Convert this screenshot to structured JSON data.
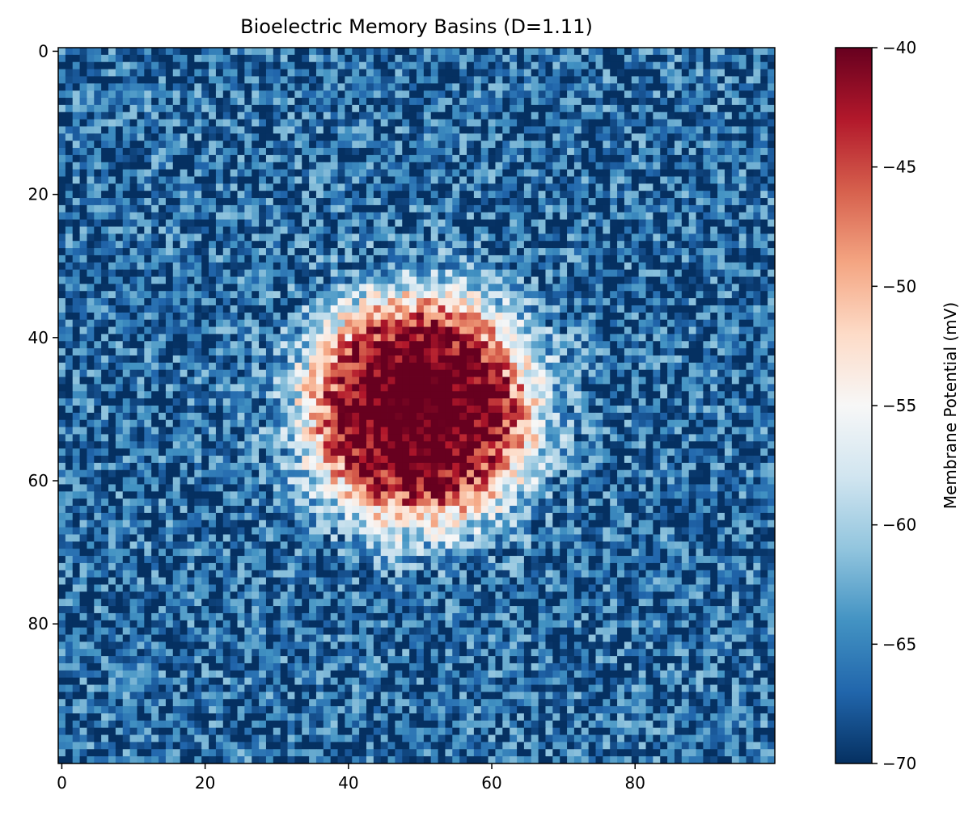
{
  "chart_data": {
    "type": "heatmap",
    "title": "Bioelectric Memory Basins (D=1.11)",
    "grid_shape": [
      100,
      100
    ],
    "x_ticks": [
      "0",
      "20",
      "40",
      "60",
      "80"
    ],
    "x_tick_values": [
      0,
      20,
      40,
      60,
      80
    ],
    "y_ticks": [
      "0",
      "20",
      "40",
      "60",
      "80"
    ],
    "y_tick_values": [
      0,
      20,
      40,
      60,
      80
    ],
    "xlim": [
      -0.5,
      99.5
    ],
    "ylim": [
      99.5,
      -0.5
    ],
    "field_model": {
      "description_free": true,
      "center": [
        50,
        50
      ],
      "core_radius": 15,
      "edge_width": 9,
      "base_value": -67,
      "peak_value": -36,
      "noise_amplitude": 6
    },
    "colormap": "RdBu_r",
    "colormap_stops": [
      "#053061",
      "#2166ac",
      "#4393c3",
      "#92c5de",
      "#d1e5f0",
      "#f7f7f7",
      "#fddbc7",
      "#f4a582",
      "#d6604d",
      "#b2182b",
      "#67001f"
    ],
    "colorbar": {
      "label": "Membrane Potential (mV)",
      "min": -70,
      "max": -40,
      "ticks": [
        "−40",
        "−45",
        "−50",
        "−55",
        "−60",
        "−65",
        "−70"
      ],
      "tick_values": [
        -40,
        -45,
        -50,
        -55,
        -60,
        -65,
        -70
      ]
    },
    "grid": false
  }
}
